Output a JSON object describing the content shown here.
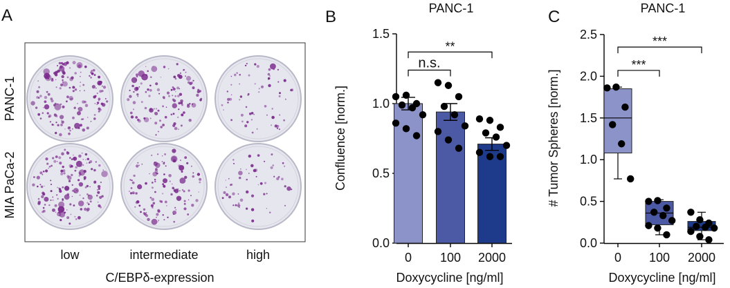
{
  "panel_a": {
    "letter": "A",
    "rows": [
      "PANC-1",
      "MIA PaCa-2"
    ],
    "columns": [
      "low",
      "intermediate",
      "high"
    ],
    "xlabel": "C/EBPδ-expression",
    "plate_colors": {
      "plate": "#e6e6ee",
      "rim": "#b9b8c8",
      "colony": "#7a2a8c"
    },
    "colony_density": [
      [
        1.0,
        0.75,
        0.35
      ],
      [
        1.0,
        0.75,
        0.3
      ]
    ]
  },
  "chart_data": [
    {
      "panel": "B",
      "type": "bar",
      "title": "PANC-1",
      "xlabel": "Doxycycline [ng/ml]",
      "ylabel": "Confluence [norm.]",
      "categories": [
        "0",
        "100",
        "2000"
      ],
      "values": [
        1.0,
        0.94,
        0.71
      ],
      "errors": [
        0.045,
        0.06,
        0.045
      ],
      "colors": [
        "#8c93c9",
        "#4c5aa6",
        "#1e3a8a"
      ],
      "points": [
        [
          1.05,
          1.06,
          1.0,
          0.99,
          0.97,
          0.92,
          0.86,
          0.82,
          0.77
        ],
        [
          1.15,
          1.13,
          1.05,
          0.98,
          0.92,
          0.84,
          0.8,
          0.74,
          0.68
        ],
        [
          0.89,
          0.88,
          0.83,
          0.79,
          0.76,
          0.7,
          0.65,
          0.62,
          0.62
        ]
      ],
      "ylim": [
        0,
        1.5
      ],
      "yticks": [
        "0.0",
        "0.5",
        "1.0",
        "1.5"
      ],
      "significance": [
        {
          "from": 0,
          "to": 1,
          "label": "n.s.",
          "y": 1.24
        },
        {
          "from": 0,
          "to": 2,
          "label": "**",
          "y": 1.37
        }
      ]
    },
    {
      "panel": "C",
      "type": "box",
      "title": "PANC-1",
      "xlabel": "Doxycycline [ng/ml]",
      "ylabel": "# Tumor Spheres [norm.]",
      "categories": [
        "0",
        "100",
        "2000"
      ],
      "box_stats": [
        {
          "min": 0.77,
          "q1": 1.08,
          "median": 1.5,
          "q3": 1.85,
          "max": 1.87
        },
        {
          "min": 0.1,
          "q1": 0.22,
          "median": 0.36,
          "q3": 0.5,
          "max": 0.52
        },
        {
          "min": 0.04,
          "q1": 0.15,
          "median": 0.19,
          "q3": 0.26,
          "max": 0.37
        }
      ],
      "colors": [
        "#8c93c9",
        "#4c5aa6",
        "#1e3a8a"
      ],
      "points": [
        [
          1.86,
          1.87,
          1.63,
          1.42,
          1.19,
          0.77
        ],
        [
          0.5,
          0.51,
          0.42,
          0.37,
          0.33,
          0.27,
          0.21,
          0.18,
          0.1
        ],
        [
          0.37,
          0.28,
          0.24,
          0.2,
          0.19,
          0.18,
          0.14,
          0.08,
          0.04
        ]
      ],
      "ylim": [
        0,
        2.5
      ],
      "yticks": [
        "0.0",
        "0.5",
        "1.0",
        "1.5",
        "2.0",
        "2.5"
      ],
      "significance": [
        {
          "from": 0,
          "to": 1,
          "label": "***",
          "y": 2.07
        },
        {
          "from": 0,
          "to": 2,
          "label": "***",
          "y": 2.35
        }
      ]
    }
  ]
}
